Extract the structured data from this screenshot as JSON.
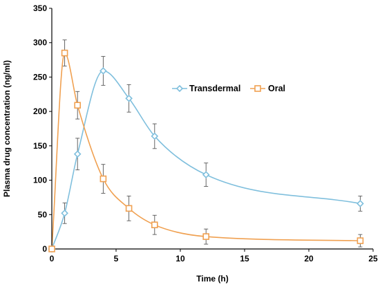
{
  "chart_data": {
    "type": "line",
    "title": "",
    "xlabel": "Time (h)",
    "ylabel": "Plasma drug concentration (ng/ml)",
    "xlim": [
      0,
      25
    ],
    "ylim": [
      0,
      350
    ],
    "xticks": [
      "0",
      "5",
      "10",
      "15",
      "20",
      "25"
    ],
    "yticks": [
      "0",
      "50",
      "100",
      "150",
      "200",
      "250",
      "300",
      "350"
    ],
    "grid": false,
    "legend_position": "center-right",
    "series": [
      {
        "name": "Transdermal",
        "marker": "diamond",
        "color": "#7fbfdd",
        "points": [
          {
            "x": 0,
            "y": 0,
            "err": 0
          },
          {
            "x": 1,
            "y": 52,
            "err": 15
          },
          {
            "x": 2,
            "y": 138,
            "err": 23
          },
          {
            "x": 4,
            "y": 259,
            "err": 21
          },
          {
            "x": 6,
            "y": 219,
            "err": 20
          },
          {
            "x": 8,
            "y": 164,
            "err": 18
          },
          {
            "x": 12,
            "y": 108,
            "err": 17
          },
          {
            "x": 24,
            "y": 66,
            "err": 11
          }
        ]
      },
      {
        "name": "Oral",
        "marker": "square",
        "color": "#f0a050",
        "points": [
          {
            "x": 0,
            "y": 0,
            "err": 0
          },
          {
            "x": 1,
            "y": 285,
            "err": 19
          },
          {
            "x": 2,
            "y": 209,
            "err": 20
          },
          {
            "x": 4,
            "y": 102,
            "err": 21
          },
          {
            "x": 6,
            "y": 59,
            "err": 18
          },
          {
            "x": 8,
            "y": 35,
            "err": 14
          },
          {
            "x": 12,
            "y": 18,
            "err": 11
          },
          {
            "x": 24,
            "y": 12,
            "err": 9
          }
        ]
      }
    ]
  }
}
